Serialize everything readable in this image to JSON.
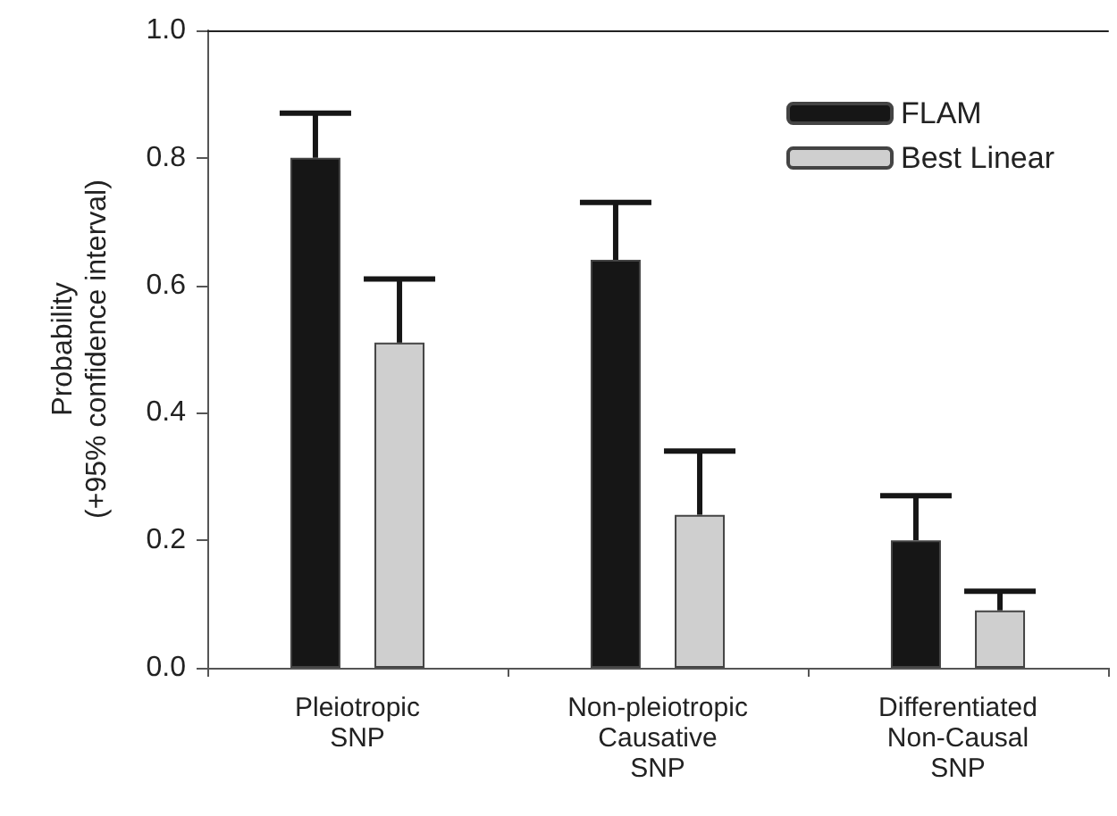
{
  "chart_data": {
    "type": "bar",
    "ylabel": "Probability\n(+95% confidence interval)",
    "categories": [
      "Pleiotropic\nSNP",
      "Non-pleiotropic\nCausative\nSNP",
      "Differentiated\nNon-Causal\nSNP"
    ],
    "series": [
      {
        "name": "FLAM",
        "color": "#161616",
        "values": [
          0.8,
          0.64,
          0.2
        ],
        "errors": [
          [
            0.8,
            0.87
          ],
          [
            0.64,
            0.73
          ],
          [
            0.2,
            0.27
          ]
        ]
      },
      {
        "name": "Best Linear",
        "color": "#cfcfcf",
        "values": [
          0.51,
          0.24,
          0.09
        ],
        "errors": [
          [
            0.51,
            0.61
          ],
          [
            0.24,
            0.34
          ],
          [
            0.09,
            0.12
          ]
        ]
      }
    ],
    "ylim": [
      0,
      1.0
    ],
    "yticks": [
      {
        "value": 0,
        "label": "0.0"
      },
      {
        "value": 0.2,
        "label": "0.2"
      },
      {
        "value": 0.4,
        "label": "0.4"
      },
      {
        "value": 0.6,
        "label": "0.6"
      },
      {
        "value": 0.8,
        "label": "0.8"
      },
      {
        "value": 1.0,
        "label": "1.0"
      }
    ],
    "grid": false,
    "legend": "top right"
  }
}
